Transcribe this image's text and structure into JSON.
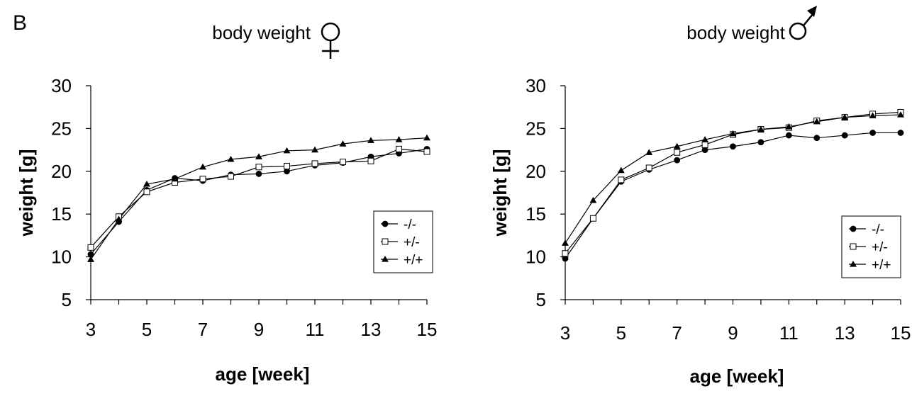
{
  "panel_label": "B",
  "chart_data": [
    {
      "type": "line",
      "title": "body weight",
      "title_symbol": "female-symbol",
      "xlabel": "age [week]",
      "ylabel": "weight [g]",
      "x_ticks": [
        "3",
        "5",
        "7",
        "9",
        "11",
        "13",
        "15"
      ],
      "y_ticks": [
        "5",
        "10",
        "15",
        "20",
        "25",
        "30"
      ],
      "xlim": [
        3,
        15
      ],
      "ylim": [
        5,
        30
      ],
      "grid": false,
      "legend_position": "lower-right",
      "x": [
        3,
        4,
        5,
        6,
        7,
        8,
        9,
        10,
        11,
        12,
        13,
        14,
        15
      ],
      "series": [
        {
          "name": "-/-",
          "marker": "circle",
          "values": [
            10.3,
            14.1,
            17.8,
            19.2,
            18.9,
            19.6,
            19.7,
            20.0,
            20.7,
            21.0,
            21.7,
            22.1,
            22.6
          ]
        },
        {
          "name": "+/-",
          "marker": "square",
          "values": [
            11.1,
            14.7,
            17.6,
            18.7,
            19.1,
            19.4,
            20.5,
            20.6,
            20.9,
            21.1,
            21.2,
            22.6,
            22.3
          ]
        },
        {
          "name": "+/+",
          "marker": "triangle",
          "values": [
            9.7,
            14.4,
            18.5,
            19.1,
            20.5,
            21.4,
            21.7,
            22.4,
            22.5,
            23.2,
            23.6,
            23.7,
            23.9
          ]
        }
      ]
    },
    {
      "type": "line",
      "title": "body weight",
      "title_symbol": "male-symbol",
      "xlabel": "age [week]",
      "ylabel": "weight [g]",
      "x_ticks": [
        "3",
        "5",
        "7",
        "9",
        "11",
        "13",
        "15"
      ],
      "y_ticks": [
        "5",
        "10",
        "15",
        "20",
        "25",
        "30"
      ],
      "xlim": [
        3,
        15
      ],
      "ylim": [
        5,
        30
      ],
      "grid": false,
      "legend_position": "lower-right",
      "x": [
        3,
        4,
        5,
        6,
        7,
        8,
        9,
        10,
        11,
        12,
        13,
        14,
        15
      ],
      "series": [
        {
          "name": "-/-",
          "marker": "circle",
          "values": [
            9.8,
            14.5,
            18.8,
            20.2,
            21.3,
            22.5,
            22.9,
            23.4,
            24.2,
            23.9,
            24.2,
            24.5,
            24.5
          ]
        },
        {
          "name": "+/-",
          "marker": "square",
          "values": [
            10.4,
            14.5,
            19.0,
            20.4,
            22.2,
            23.1,
            24.3,
            24.9,
            25.1,
            25.9,
            26.3,
            26.7,
            26.9
          ]
        },
        {
          "name": "+/+",
          "marker": "triangle",
          "values": [
            11.6,
            16.6,
            20.1,
            22.2,
            22.9,
            23.7,
            24.4,
            24.9,
            25.2,
            25.8,
            26.3,
            26.5,
            26.6
          ]
        }
      ]
    }
  ]
}
